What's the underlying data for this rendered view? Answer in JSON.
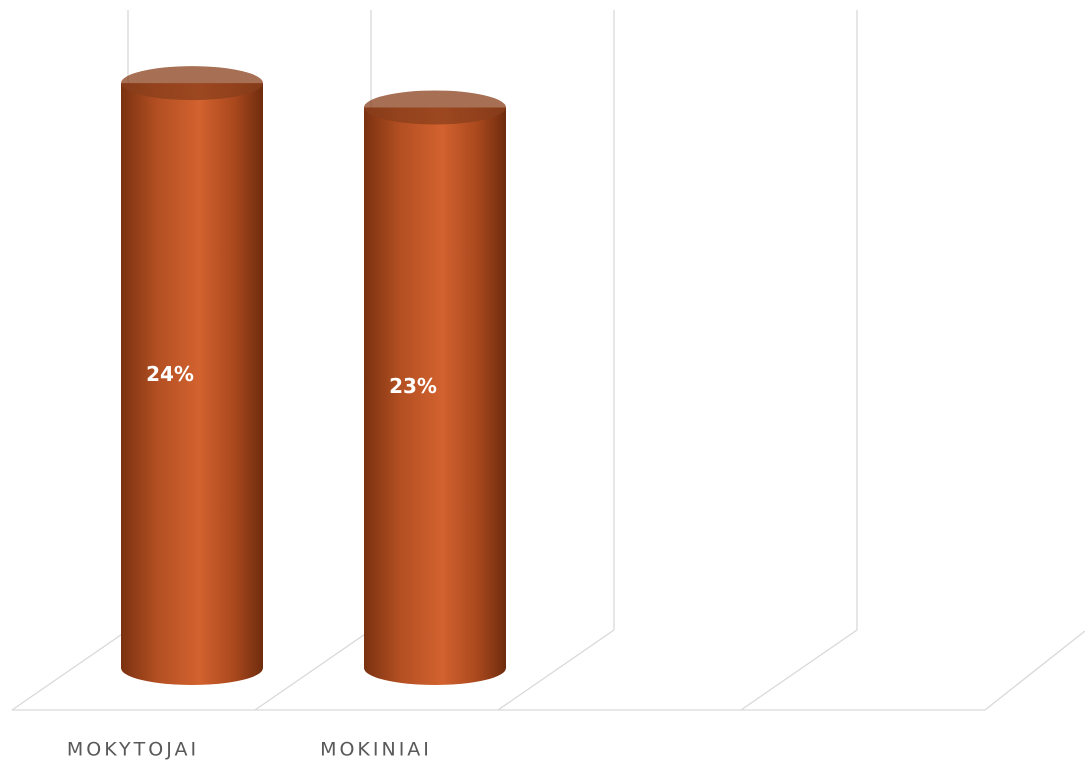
{
  "chart_data": {
    "type": "cylinder",
    "categories": [
      "MOKYTOJAI",
      "MOKINIAI",
      null,
      null
    ],
    "values": [
      24,
      23,
      null,
      null
    ],
    "value_labels": [
      "24%",
      "23%",
      null,
      null
    ],
    "color": "#c55a28",
    "ylim": [
      0,
      27
    ]
  }
}
